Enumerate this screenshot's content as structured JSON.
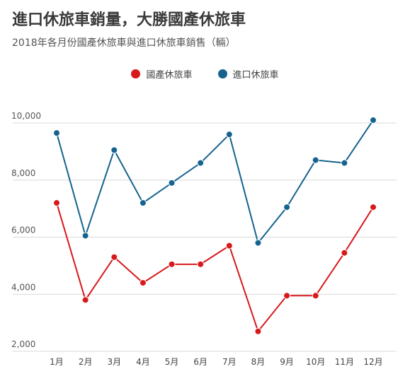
{
  "title": "進口休旅車銷量，大勝國產休旅車",
  "subtitle": "2018年各月份國產休旅車與進口休旅車銷售（輛）",
  "chart_data": {
    "type": "line",
    "title": "進口休旅車銷量，大勝國產休旅車",
    "subtitle": "2018年各月份國產休旅車與進口休旅車銷售（輛）",
    "xlabel": "",
    "ylabel": "",
    "categories": [
      "1月",
      "2月",
      "3月",
      "4月",
      "5月",
      "6月",
      "7月",
      "8月",
      "9月",
      "10月",
      "11月",
      "12月"
    ],
    "y_ticks": [
      2000,
      4000,
      6000,
      8000,
      10000
    ],
    "y_tick_labels": [
      "2,000",
      "4,000",
      "6,000",
      "8,000",
      "10,000"
    ],
    "ylim": [
      2000,
      10000
    ],
    "grid": true,
    "legend_position": "top-center",
    "series": [
      {
        "name": "國產休旅車",
        "color": "#d7191c",
        "values": [
          7200,
          3800,
          5300,
          4400,
          5050,
          5050,
          5700,
          2700,
          3950,
          3950,
          5450,
          7050
        ]
      },
      {
        "name": "進口休旅車",
        "color": "#15638e",
        "values": [
          9650,
          6050,
          9050,
          7200,
          7900,
          8600,
          9600,
          5800,
          7050,
          8700,
          8600,
          10100
        ]
      }
    ]
  }
}
